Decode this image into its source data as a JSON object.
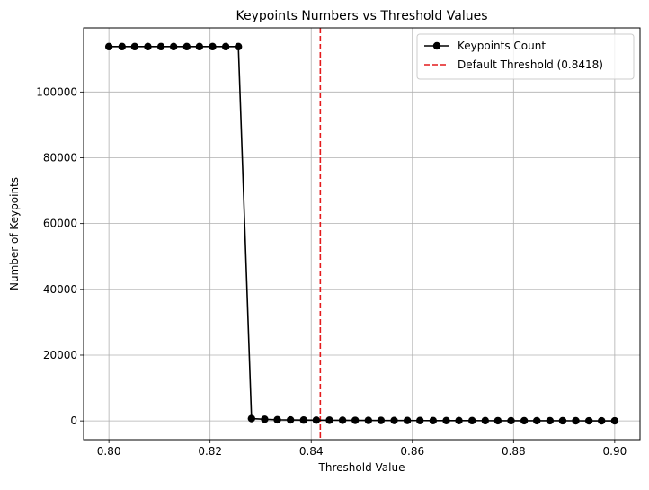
{
  "chart_data": {
    "type": "line",
    "title": "Keypoints Numbers vs Threshold Values",
    "xlabel": "Threshold Value",
    "ylabel": "Number of Keypoints",
    "xlim": [
      0.795,
      0.905
    ],
    "ylim": [
      -5700,
      119500
    ],
    "xticks": [
      0.8,
      0.82,
      0.84,
      0.86,
      0.88,
      0.9
    ],
    "xtick_labels": [
      "0.80",
      "0.82",
      "0.84",
      "0.86",
      "0.88",
      "0.90"
    ],
    "yticks": [
      0,
      20000,
      40000,
      60000,
      80000,
      100000
    ],
    "ytick_labels": [
      "0",
      "20000",
      "40000",
      "60000",
      "80000",
      "100000"
    ],
    "grid": true,
    "legend_position": "top-right",
    "series": [
      {
        "name": "Keypoints Count",
        "color": "#000000",
        "marker": "circle",
        "x": [
          0.8,
          0.8026,
          0.8051,
          0.8077,
          0.8103,
          0.8128,
          0.8154,
          0.8179,
          0.8205,
          0.8231,
          0.8256,
          0.8282,
          0.8308,
          0.8333,
          0.8359,
          0.8385,
          0.841,
          0.8436,
          0.8462,
          0.8487,
          0.8513,
          0.8538,
          0.8564,
          0.859,
          0.8615,
          0.8641,
          0.8667,
          0.8692,
          0.8718,
          0.8744,
          0.8769,
          0.8795,
          0.8821,
          0.8846,
          0.8872,
          0.8897,
          0.8923,
          0.8949,
          0.8974,
          0.9
        ],
        "y": [
          113800,
          113800,
          113800,
          113800,
          113800,
          113800,
          113800,
          113800,
          113800,
          113800,
          113800,
          700,
          500,
          350,
          300,
          250,
          230,
          210,
          190,
          170,
          150,
          140,
          130,
          120,
          110,
          100,
          90,
          85,
          80,
          75,
          70,
          65,
          60,
          55,
          50,
          45,
          40,
          35,
          30,
          25
        ]
      }
    ],
    "reference_lines": [
      {
        "name": "Default Threshold (0.8418)",
        "orientation": "vertical",
        "x": 0.8418,
        "color": "#e41a1c",
        "style": "dashed"
      }
    ]
  }
}
